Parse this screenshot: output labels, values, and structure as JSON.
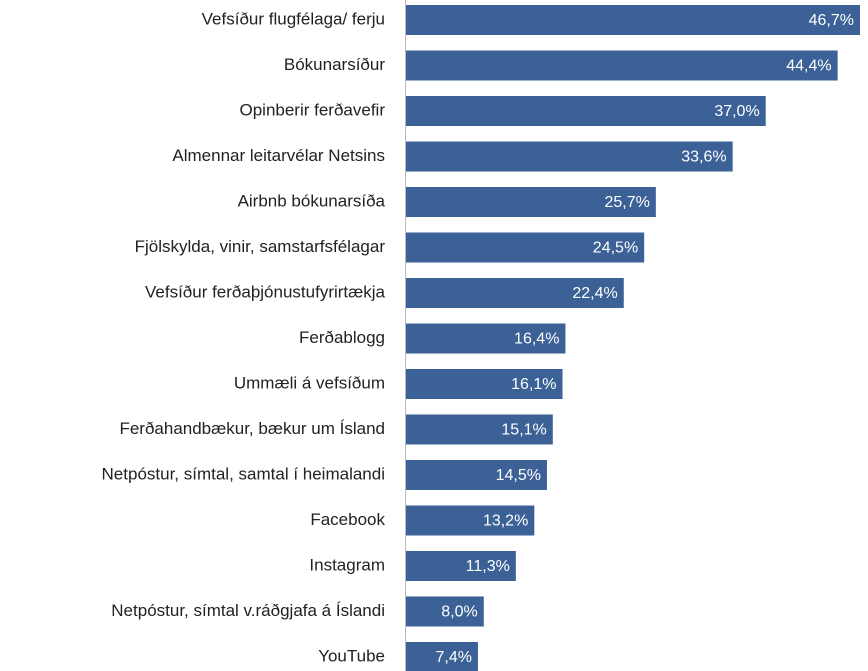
{
  "chart_data": {
    "type": "barh",
    "categories": [
      "Vefsíður flugfélaga/ ferju",
      "Bókunarsíður",
      "Opinberir ferðavefir",
      "Almennar leitarvélar Netsins",
      "Airbnb bókunarsíða",
      "Fjölskylda, vinir, samstarfsfélagar",
      "Vefsíður ferðaþjónustufyrirtækja",
      "Ferðablogg",
      "Ummæli á vefsíðum",
      "Ferðahandbækur, bækur um Ísland",
      "Netpóstur, símtal, samtal í heimalandi",
      "Facebook",
      "Instagram",
      "Netpóstur, símtal v.ráðgjafa á Íslandi",
      "YouTube"
    ],
    "values": [
      46.7,
      44.4,
      37.0,
      33.6,
      25.7,
      24.5,
      22.4,
      16.4,
      16.1,
      15.1,
      14.5,
      13.2,
      11.3,
      8.0,
      7.4
    ],
    "value_labels": [
      "46,7%",
      "44,4%",
      "37,0%",
      "33,6%",
      "25,7%",
      "24,5%",
      "22,4%",
      "16,4%",
      "16,1%",
      "15,1%",
      "14,5%",
      "13,2%",
      "11,3%",
      "8,0%",
      "7,4%"
    ],
    "color": "#3b6196"
  }
}
